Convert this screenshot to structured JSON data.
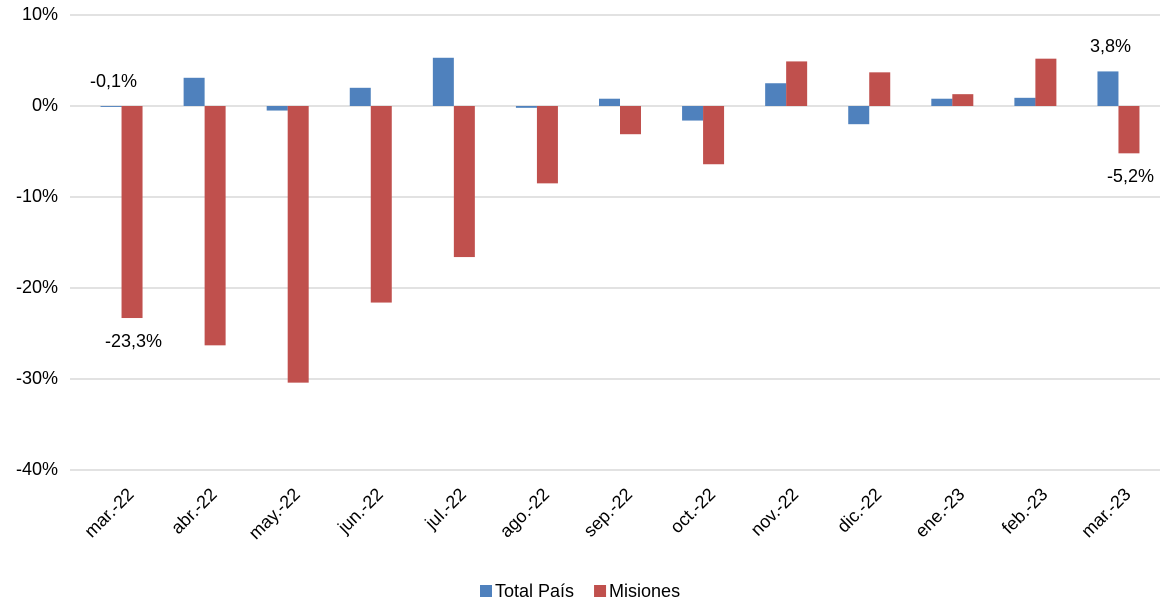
{
  "chart_data": {
    "type": "bar",
    "categories": [
      "mar.-22",
      "abr.-22",
      "may.-22",
      "jun.-22",
      "jul.-22",
      "ago.-22",
      "sep.-22",
      "oct.-22",
      "nov.-22",
      "dic.-22",
      "ene.-23",
      "feb.-23",
      "mar.-23"
    ],
    "series": [
      {
        "name": "Total País",
        "color": "#4f81bd",
        "values": [
          -0.1,
          3.1,
          -0.5,
          2.0,
          5.3,
          -0.2,
          0.8,
          -1.6,
          2.5,
          -2.0,
          0.8,
          0.9,
          3.8
        ],
        "value_labels": [
          "-0,1%",
          null,
          null,
          null,
          null,
          null,
          null,
          null,
          null,
          null,
          null,
          null,
          "3,8%"
        ]
      },
      {
        "name": "Misiones",
        "color": "#c0504d",
        "values": [
          -23.3,
          -26.3,
          -30.4,
          -21.6,
          -16.6,
          -8.5,
          -3.1,
          -6.4,
          4.9,
          3.7,
          1.3,
          5.2,
          -5.2
        ],
        "value_labels": [
          "-23,3%",
          null,
          null,
          null,
          null,
          null,
          null,
          null,
          null,
          null,
          null,
          null,
          "-5,2%"
        ]
      }
    ],
    "ylim": [
      -40,
      10
    ],
    "yticks": [
      {
        "value": -40,
        "label": "-40%"
      },
      {
        "value": -30,
        "label": "-30%"
      },
      {
        "value": -20,
        "label": "-20%"
      },
      {
        "value": -10,
        "label": "-10%"
      },
      {
        "value": 0,
        "label": "0%"
      },
      {
        "value": 10,
        "label": "10%"
      }
    ],
    "grid": true,
    "legend": "bottom"
  }
}
